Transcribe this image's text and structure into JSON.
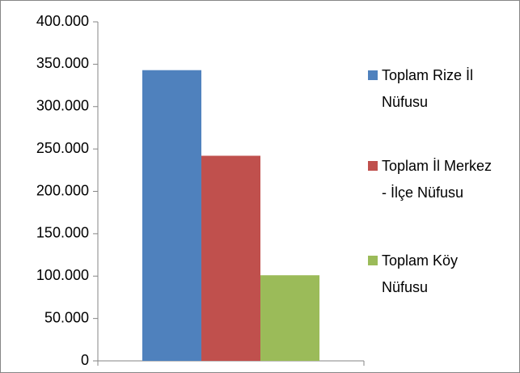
{
  "chart_data": {
    "type": "bar",
    "categories": [
      null
    ],
    "series": [
      {
        "name": "Toplam Rize İl Nüfusu",
        "color": "#4f81bd",
        "values": [
          343000
        ]
      },
      {
        "name": "Toplam İl Merkez - İlçe Nüfusu",
        "color": "#c0504d",
        "values": [
          242000
        ]
      },
      {
        "name": "Toplam Köy Nüfusu",
        "color": "#9bbb59",
        "values": [
          101000
        ]
      }
    ],
    "ylim": [
      0,
      400000
    ],
    "yticks": [
      0,
      {
        "value": 50000,
        "label": "50.000"
      },
      {
        "value": 100000,
        "label": "100.000"
      },
      {
        "value": 150000,
        "label": "150.000"
      },
      {
        "value": 200000,
        "label": "200.000"
      },
      {
        "value": 250000,
        "label": "250.000"
      },
      {
        "value": 300000,
        "label": "300.000"
      },
      {
        "value": 350000,
        "label": "350.000"
      },
      {
        "value": 400000,
        "label": "400.000"
      }
    ],
    "grid": false,
    "legend": "right"
  }
}
